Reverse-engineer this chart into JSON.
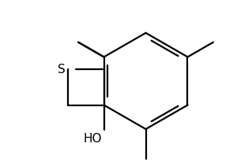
{
  "background_color": "#ffffff",
  "line_color": "#000000",
  "line_width": 1.6,
  "figsize": [
    3.0,
    2.06
  ],
  "dpi": 100,
  "S_label": "S",
  "HO_label": "HO",
  "S_fontsize": 11,
  "HO_fontsize": 11
}
